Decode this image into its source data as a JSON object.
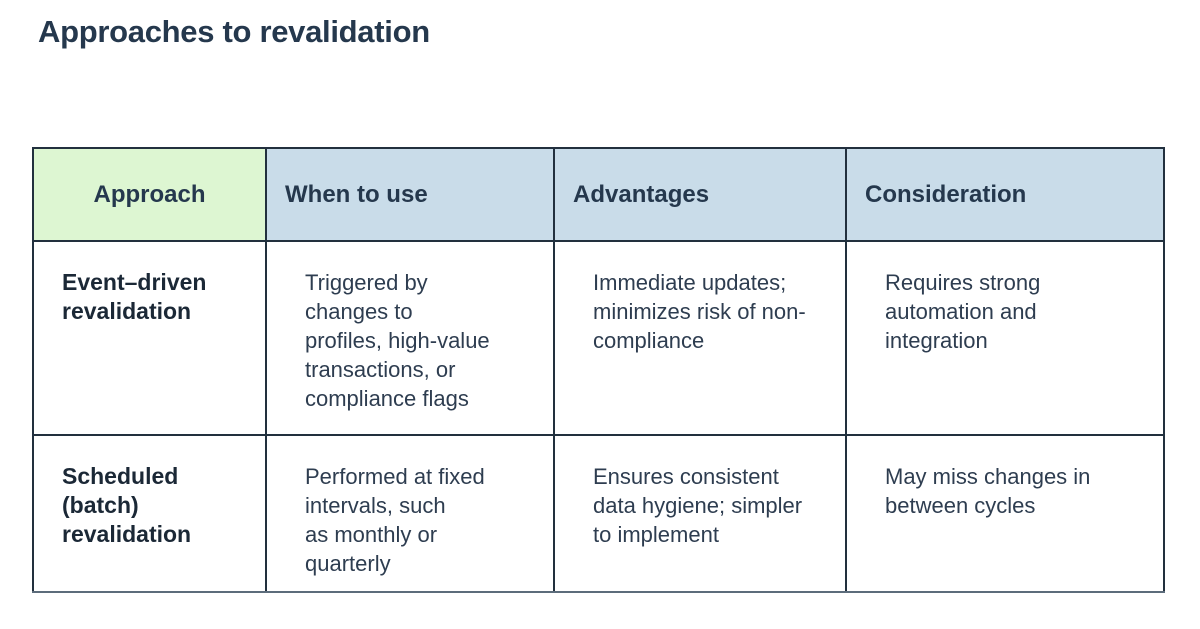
{
  "page": {
    "title": "Approaches to revalidation"
  },
  "colors": {
    "title_text": "#25384d",
    "header_text": "#25384d",
    "label_text": "#1b2836",
    "body_text": "#2e3d50",
    "approach_header_bg": "#ddf6d2",
    "header_bg": "#c9dce9",
    "cell_border": "#22303e",
    "table_bottom_border": "#5c6c7b"
  },
  "table": {
    "headers": [
      {
        "label": "Approach"
      },
      {
        "label": "When to use"
      },
      {
        "label": "Advantages"
      },
      {
        "label": "Consideration"
      }
    ],
    "rows": [
      {
        "approach": "Event–driven\nrevalidation",
        "when_to_use": "Triggered by\nchanges to\nprofiles, high-value\ntransactions, or\ncompliance flags",
        "advantages": "Immediate updates;\nminimizes risk of non-\ncompliance",
        "consideration": "Requires strong\nautomation and\nintegration"
      },
      {
        "approach": "Scheduled\n(batch)\nrevalidation",
        "when_to_use": "Performed at fixed\nintervals, such\nas monthly or\nquarterly",
        "advantages": "Ensures consistent\ndata hygiene; simpler\nto implement",
        "consideration": "May miss changes in\nbetween cycles"
      }
    ]
  }
}
